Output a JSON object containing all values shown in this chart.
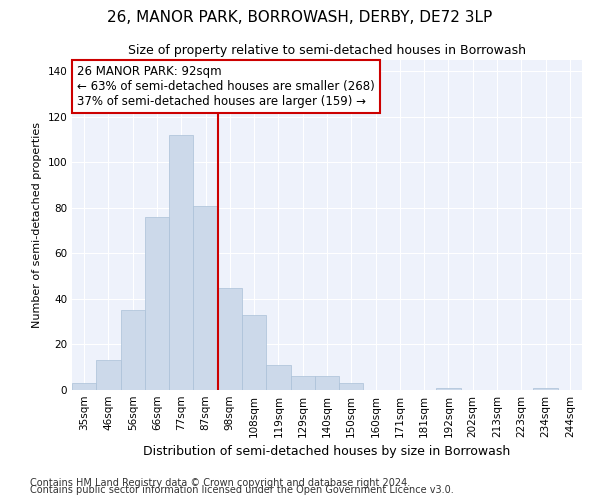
{
  "title": "26, MANOR PARK, BORROWASH, DERBY, DE72 3LP",
  "subtitle": "Size of property relative to semi-detached houses in Borrowash",
  "xlabel": "Distribution of semi-detached houses by size in Borrowash",
  "ylabel": "Number of semi-detached properties",
  "categories": [
    "35sqm",
    "46sqm",
    "56sqm",
    "66sqm",
    "77sqm",
    "87sqm",
    "98sqm",
    "108sqm",
    "119sqm",
    "129sqm",
    "140sqm",
    "150sqm",
    "160sqm",
    "171sqm",
    "181sqm",
    "192sqm",
    "202sqm",
    "213sqm",
    "223sqm",
    "234sqm",
    "244sqm"
  ],
  "values": [
    3,
    13,
    35,
    76,
    112,
    81,
    45,
    33,
    11,
    6,
    6,
    3,
    0,
    0,
    0,
    1,
    0,
    0,
    0,
    1,
    0
  ],
  "bar_color": "#ccd9ea",
  "bar_edge_color": "#aac0d8",
  "vline_color": "#cc0000",
  "vline_x": 5.5,
  "annotation_line1": "26 MANOR PARK: 92sqm",
  "annotation_line2": "← 63% of semi-detached houses are smaller (268)",
  "annotation_line3": "37% of semi-detached houses are larger (159) →",
  "annotation_box_facecolor": "#ffffff",
  "annotation_box_edgecolor": "#cc0000",
  "ylim": [
    0,
    145
  ],
  "yticks": [
    0,
    20,
    40,
    60,
    80,
    100,
    120,
    140
  ],
  "bg_color": "#eef2fb",
  "grid_color": "#ffffff",
  "footer1": "Contains HM Land Registry data © Crown copyright and database right 2024.",
  "footer2": "Contains public sector information licensed under the Open Government Licence v3.0.",
  "title_fontsize": 11,
  "subtitle_fontsize": 9,
  "xlabel_fontsize": 9,
  "ylabel_fontsize": 8,
  "tick_fontsize": 7.5,
  "ann_fontsize": 8.5,
  "footer_fontsize": 7
}
